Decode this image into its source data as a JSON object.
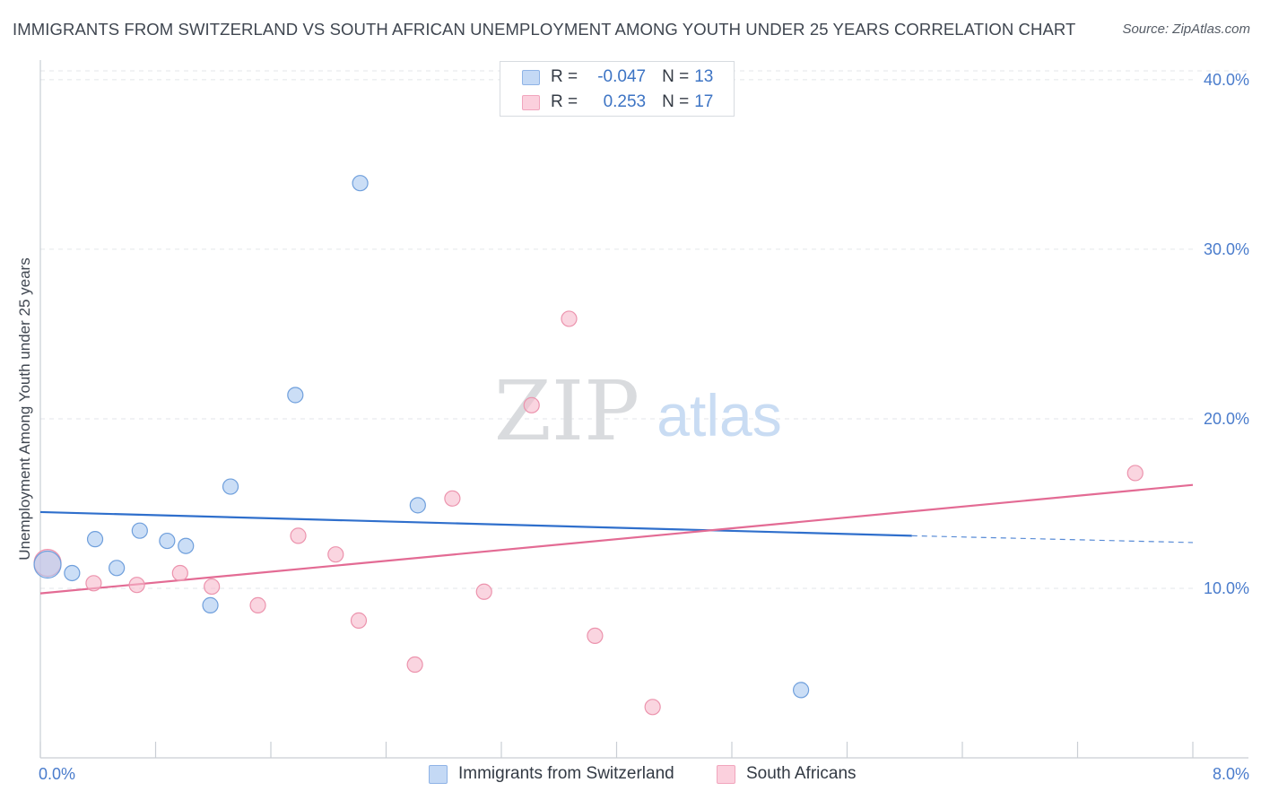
{
  "title": "IMMIGRANTS FROM SWITZERLAND VS SOUTH AFRICAN UNEMPLOYMENT AMONG YOUTH UNDER 25 YEARS CORRELATION CHART",
  "source": "Source: ZipAtlas.com",
  "watermark": {
    "zip": "ZIP",
    "atlas": "atlas"
  },
  "legend": {
    "r_label": "R =",
    "n_label": "N =",
    "rows": [
      {
        "r": "-0.047",
        "n": "13",
        "color": "#a9c8f0"
      },
      {
        "r": "0.253",
        "n": "17",
        "color": "#f7b9cc"
      }
    ]
  },
  "bottom_legend": [
    {
      "label": "Immigrants from Switzerland",
      "color": "#a9c8f0"
    },
    {
      "label": "South Africans",
      "color": "#f7b9cc"
    }
  ],
  "chart_data": {
    "type": "scatter",
    "title": "IMMIGRANTS FROM SWITZERLAND VS SOUTH AFRICAN UNEMPLOYMENT AMONG YOUTH UNDER 25 YEARS CORRELATION CHART",
    "xlabel": "",
    "ylabel": "Unemployment Among Youth under 25 years",
    "xlim": [
      0,
      8
    ],
    "ylim": [
      0,
      41
    ],
    "x_tick_labels": [
      "0.0%",
      "8.0%"
    ],
    "y_ticks": [
      10,
      20,
      30,
      40
    ],
    "y_tick_labels": [
      "10.0%",
      "20.0%",
      "30.0%",
      "40.0%"
    ],
    "grid": true,
    "series": [
      {
        "name": "Immigrants from Switzerland",
        "color": "#a9c8f0",
        "stroke": "#6f9fdc",
        "line_color": "#2f6fcc",
        "points": [
          {
            "x": 0.05,
            "y": 11.4,
            "big": true
          },
          {
            "x": 0.22,
            "y": 10.9
          },
          {
            "x": 0.38,
            "y": 12.9
          },
          {
            "x": 0.53,
            "y": 11.2
          },
          {
            "x": 0.69,
            "y": 13.4
          },
          {
            "x": 0.88,
            "y": 12.8
          },
          {
            "x": 1.01,
            "y": 12.5
          },
          {
            "x": 1.18,
            "y": 9.0
          },
          {
            "x": 1.32,
            "y": 16.0
          },
          {
            "x": 1.77,
            "y": 21.4
          },
          {
            "x": 2.22,
            "y": 33.9
          },
          {
            "x": 2.62,
            "y": 14.9
          },
          {
            "x": 5.28,
            "y": 4.0
          }
        ],
        "trend": {
          "x0": 0.0,
          "y0": 14.5,
          "x1": 6.05,
          "y1": 13.1,
          "x_dash_end": 8.0,
          "y_dash_end": 12.7
        }
      },
      {
        "name": "South Africans",
        "color": "#f7b9cc",
        "stroke": "#ec93ad",
        "line_color": "#e36b94",
        "points": [
          {
            "x": 0.05,
            "y": 11.5,
            "big": true
          },
          {
            "x": 0.37,
            "y": 10.3
          },
          {
            "x": 0.67,
            "y": 10.2
          },
          {
            "x": 0.97,
            "y": 10.9
          },
          {
            "x": 1.19,
            "y": 10.1
          },
          {
            "x": 1.51,
            "y": 9.0
          },
          {
            "x": 1.79,
            "y": 13.1
          },
          {
            "x": 2.05,
            "y": 12.0
          },
          {
            "x": 2.21,
            "y": 8.1
          },
          {
            "x": 2.6,
            "y": 5.5
          },
          {
            "x": 2.86,
            "y": 15.3
          },
          {
            "x": 3.08,
            "y": 9.8
          },
          {
            "x": 3.41,
            "y": 20.8
          },
          {
            "x": 3.67,
            "y": 25.9
          },
          {
            "x": 3.85,
            "y": 7.2
          },
          {
            "x": 4.25,
            "y": 3.0
          },
          {
            "x": 7.6,
            "y": 16.8
          }
        ],
        "trend": {
          "x0": 0.0,
          "y0": 9.7,
          "x1": 8.0,
          "y1": 16.1
        }
      }
    ]
  }
}
